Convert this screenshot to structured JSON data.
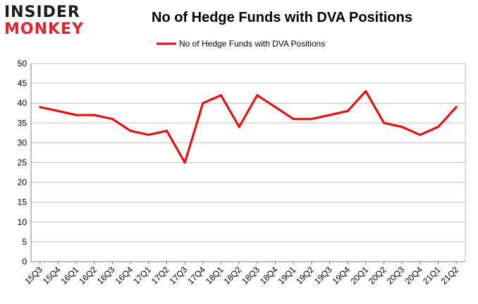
{
  "logo": {
    "line1": "INSIDER",
    "line2": "MONKEY"
  },
  "chart_data": {
    "type": "line",
    "title": "No of Hedge Funds with DVA Positions",
    "xlabel": "",
    "ylabel": "",
    "categories": [
      "15Q3",
      "15Q4",
      "16Q1",
      "16Q2",
      "16Q3",
      "16Q4",
      "17Q1",
      "17Q2",
      "17Q3",
      "17Q4",
      "18Q1",
      "18Q2",
      "18Q3",
      "18Q4",
      "19Q1",
      "19Q2",
      "19Q3",
      "19Q4",
      "20Q1",
      "20Q2",
      "20Q3",
      "20Q4",
      "21Q1",
      "21Q2"
    ],
    "series": [
      {
        "name": "No of Hedge Funds with DVA Positions",
        "color": "#ff0000",
        "values": [
          39,
          38,
          37,
          37,
          36,
          33,
          32,
          33,
          25,
          40,
          42,
          34,
          42,
          39,
          36,
          36,
          37,
          38,
          43,
          35,
          34,
          32,
          34,
          39
        ]
      }
    ],
    "ylim": [
      0,
      50
    ],
    "yticks": [
      "0",
      "5",
      "10",
      "15",
      "20",
      "25",
      "30",
      "35",
      "40",
      "45",
      "50"
    ],
    "grid": true,
    "legend": "top-center"
  }
}
